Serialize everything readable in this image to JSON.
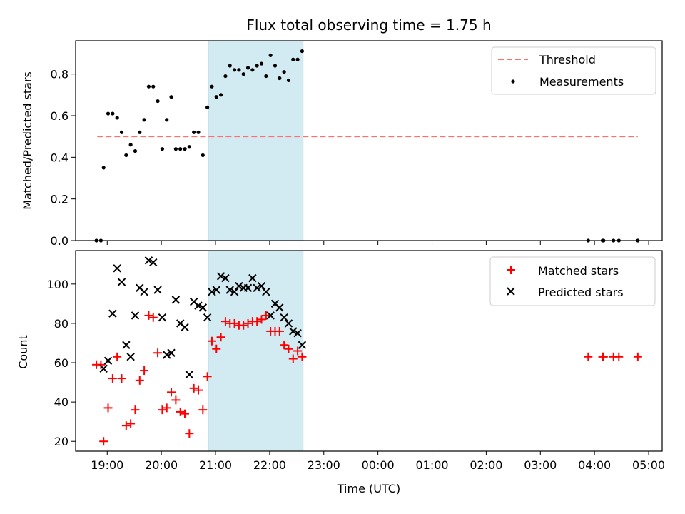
{
  "chart_data": [
    {
      "type": "scatter",
      "title": "Flux total observing time = 1.75 h",
      "xlabel": "",
      "ylabel": "Matched/Predicted stars",
      "ylim": [
        0,
        0.96
      ],
      "yticks": [
        0.0,
        0.2,
        0.4,
        0.6,
        0.8
      ],
      "ytick_labels": [
        "0.0",
        "0.2",
        "0.4",
        "0.6",
        "0.8"
      ],
      "xlim": [
        "18:25",
        "05:15"
      ],
      "shaded_span": [
        "20:52",
        "22:37"
      ],
      "shade_color": "#add8e6",
      "legend_position": "top-right",
      "series": [
        {
          "name": "Threshold",
          "kind": "dashed-line",
          "color": "#ff6f6f",
          "x": [
            "18:49",
            "04:48"
          ],
          "y": [
            0.5,
            0.5
          ]
        },
        {
          "name": "Measurements",
          "kind": "dots",
          "color": "#000000",
          "x": [
            "18:48",
            "18:53",
            "18:56",
            "19:01",
            "19:06",
            "19:11",
            "19:16",
            "19:21",
            "19:26",
            "19:31",
            "19:36",
            "19:41",
            "19:46",
            "19:51",
            "19:56",
            "20:01",
            "20:06",
            "20:11",
            "20:16",
            "20:21",
            "20:26",
            "20:31",
            "20:36",
            "20:41",
            "20:46",
            "20:51",
            "20:56",
            "21:01",
            "21:06",
            "21:11",
            "21:16",
            "21:21",
            "21:26",
            "21:31",
            "21:36",
            "21:41",
            "21:46",
            "21:51",
            "21:56",
            "22:01",
            "22:06",
            "22:11",
            "22:16",
            "22:21",
            "22:26",
            "22:31",
            "22:36",
            "03:53",
            "04:09",
            "04:10",
            "04:21",
            "04:27",
            "04:48"
          ],
          "y": [
            0.0,
            0.0,
            0.35,
            0.61,
            0.61,
            0.59,
            0.52,
            0.41,
            0.46,
            0.43,
            0.52,
            0.58,
            0.74,
            0.74,
            0.67,
            0.44,
            0.58,
            0.69,
            0.44,
            0.44,
            0.44,
            0.45,
            0.52,
            0.52,
            0.41,
            0.64,
            0.74,
            0.69,
            0.7,
            0.79,
            0.84,
            0.82,
            0.82,
            0.8,
            0.83,
            0.82,
            0.84,
            0.85,
            0.79,
            0.89,
            0.84,
            0.78,
            0.81,
            0.77,
            0.87,
            0.87,
            0.91,
            0.0,
            0.0,
            0.0,
            0.0,
            0.0,
            0.0
          ]
        }
      ]
    },
    {
      "type": "scatter",
      "title": "",
      "xlabel": "Time (UTC)",
      "ylabel": "Count",
      "ylim": [
        15,
        117
      ],
      "yticks": [
        20,
        40,
        60,
        80,
        100
      ],
      "ytick_labels": [
        "20",
        "40",
        "60",
        "80",
        "100"
      ],
      "xlim": [
        "18:25",
        "05:15"
      ],
      "xticks": [
        "19:00",
        "20:00",
        "21:00",
        "22:00",
        "23:00",
        "00:00",
        "01:00",
        "02:00",
        "03:00",
        "04:00",
        "05:00"
      ],
      "shaded_span": [
        "20:52",
        "22:37"
      ],
      "shade_color": "#add8e6",
      "legend_position": "top-right",
      "series": [
        {
          "name": "Matched stars",
          "kind": "plus",
          "color": "#ff0000",
          "x": [
            "18:48",
            "18:53",
            "18:56",
            "19:01",
            "19:06",
            "19:11",
            "19:16",
            "19:21",
            "19:26",
            "19:31",
            "19:36",
            "19:41",
            "19:46",
            "19:51",
            "19:56",
            "20:01",
            "20:06",
            "20:11",
            "20:16",
            "20:21",
            "20:26",
            "20:31",
            "20:36",
            "20:41",
            "20:46",
            "20:51",
            "20:56",
            "21:01",
            "21:06",
            "21:11",
            "21:16",
            "21:21",
            "21:26",
            "21:31",
            "21:36",
            "21:41",
            "21:46",
            "21:51",
            "21:56",
            "22:01",
            "22:06",
            "22:11",
            "22:16",
            "22:21",
            "22:26",
            "22:31",
            "22:36",
            "03:53",
            "04:09",
            "04:10",
            "04:21",
            "04:27",
            "04:48"
          ],
          "y": [
            59,
            59,
            20,
            37,
            52,
            63,
            52,
            28,
            29,
            36,
            51,
            56,
            84,
            83,
            65,
            36,
            37,
            45,
            41,
            35,
            34,
            24,
            47,
            46,
            36,
            53,
            71,
            67,
            73,
            81,
            80,
            80,
            79,
            79,
            80,
            81,
            81,
            82,
            84,
            76,
            76,
            76,
            69,
            67,
            62,
            66,
            63,
            63,
            63,
            63,
            63,
            63,
            63
          ]
        },
        {
          "name": "Predicted stars",
          "kind": "x",
          "color": "#000000",
          "x": [
            "18:56",
            "19:01",
            "19:06",
            "19:11",
            "19:16",
            "19:21",
            "19:26",
            "19:31",
            "19:36",
            "19:41",
            "19:46",
            "19:51",
            "19:56",
            "20:01",
            "20:06",
            "20:11",
            "20:16",
            "20:21",
            "20:26",
            "20:31",
            "20:36",
            "20:41",
            "20:46",
            "20:51",
            "20:56",
            "21:01",
            "21:06",
            "21:11",
            "21:16",
            "21:21",
            "21:26",
            "21:31",
            "21:36",
            "21:41",
            "21:46",
            "21:51",
            "21:56",
            "22:01",
            "22:06",
            "22:11",
            "22:16",
            "22:21",
            "22:26",
            "22:31",
            "22:36"
          ],
          "y": [
            57,
            61,
            85,
            108,
            101,
            69,
            63,
            84,
            98,
            96,
            112,
            111,
            97,
            83,
            64,
            65,
            92,
            80,
            78,
            54,
            91,
            89,
            88,
            83,
            96,
            97,
            104,
            103,
            97,
            96,
            99,
            98,
            98,
            103,
            98,
            99,
            96,
            84,
            90,
            88,
            83,
            80,
            76,
            75,
            69
          ]
        }
      ]
    }
  ]
}
